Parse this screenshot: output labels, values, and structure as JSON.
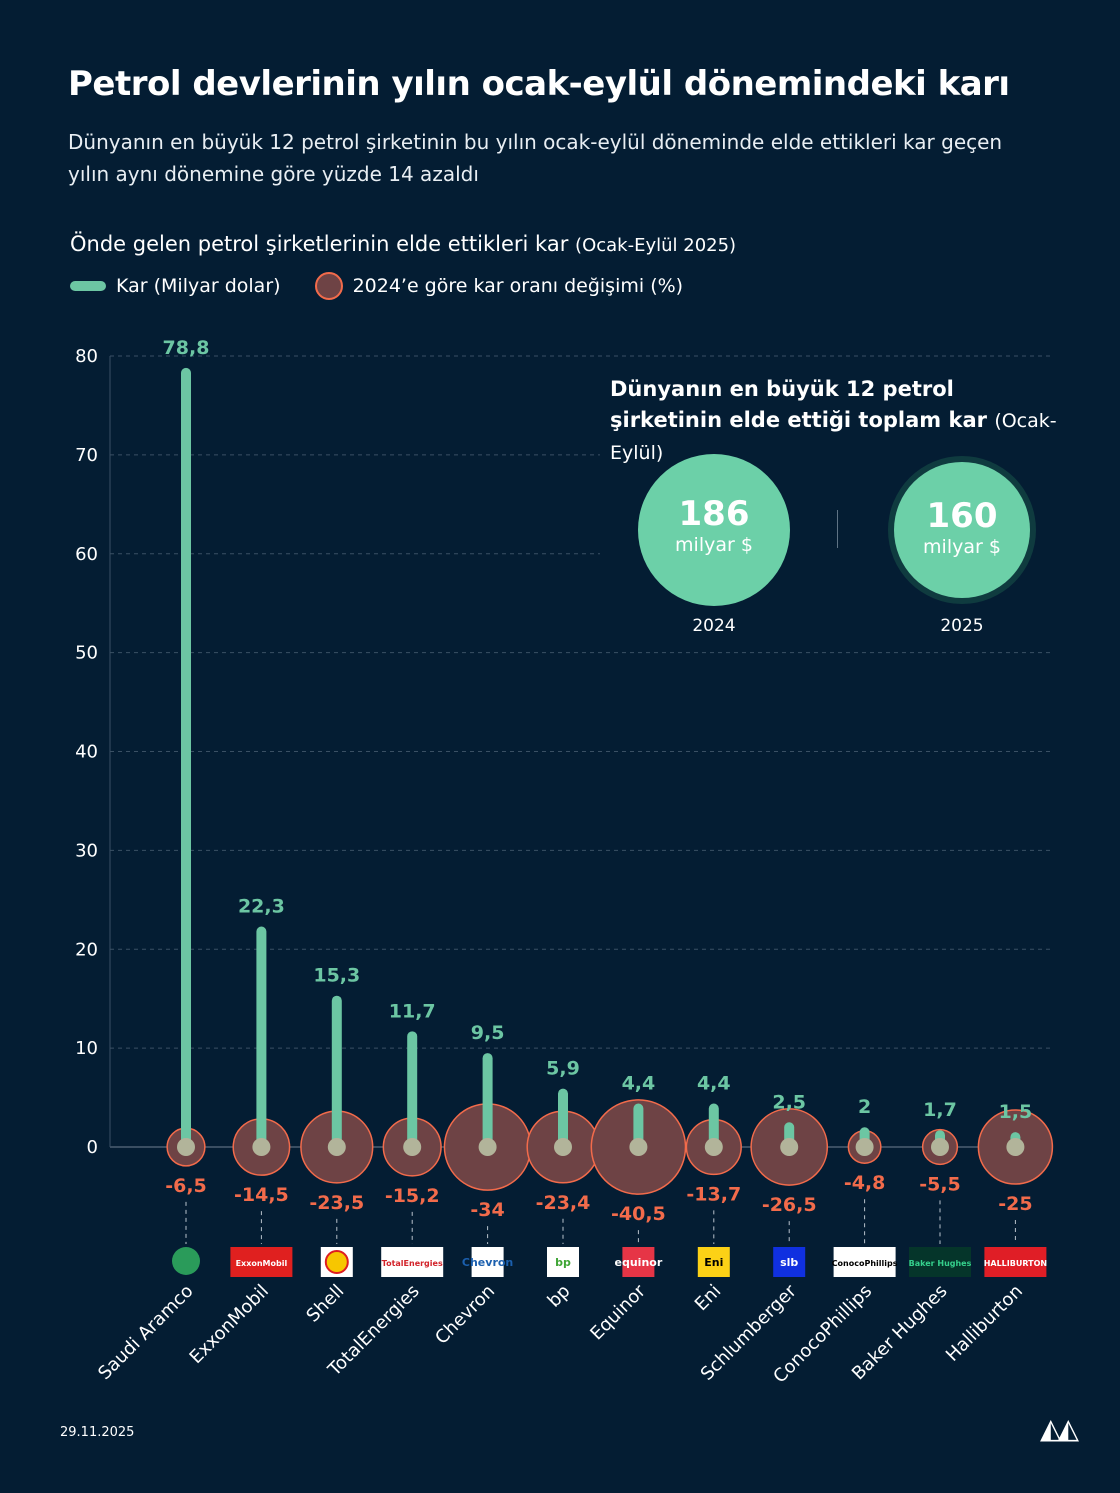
{
  "title": "Petrol devlerinin yılın ocak-eylül dönemindeki karı",
  "subtitle": "Dünyanın en büyük 12 petrol şirketinin bu yılın ocak-eylül döneminde elde ettikleri kar geçen yılın aynı dönemine göre yüzde 14 azaldı",
  "chart_data": {
    "type": "bar",
    "title": "Önde gelen petrol şirketlerinin elde ettikleri kar",
    "title_note": "(Ocak-Eylül 2025)",
    "legend": {
      "bar": "Kar (Milyar dolar)",
      "bubble": "2024’e göre kar oranı değişimi (%)",
      "placement": "top-left"
    },
    "categories": [
      "Saudi Aramco",
      "ExxonMobil",
      "Shell",
      "TotalEnergies",
      "Chevron",
      "bp",
      "Equinor",
      "Eni",
      "Schlumberger",
      "ConocoPhillips",
      "Baker Hughes",
      "Halliburton"
    ],
    "series": [
      {
        "name": "Kar (Milyar dolar)",
        "values": [
          78.8,
          22.3,
          15.3,
          11.7,
          9.5,
          5.9,
          4.4,
          4.4,
          2.5,
          2,
          1.7,
          1.5
        ],
        "labels": [
          "78,8",
          "22,3",
          "15,3",
          "11,7",
          "9,5",
          "5,9",
          "4,4",
          "4,4",
          "2,5",
          "2",
          "1,7",
          "1,5"
        ],
        "color": "#6cc6a3"
      },
      {
        "name": "2024’e göre kar oranı değişimi (%)",
        "values": [
          -6.5,
          -14.5,
          -23.5,
          -15.2,
          -34,
          -23.4,
          -40.5,
          -13.7,
          -26.5,
          -4.8,
          -5.5,
          -25
        ],
        "labels": [
          "-6,5",
          "-14,5",
          "-23,5",
          "-15,2",
          "-34",
          "-23,4",
          "-40,5",
          "-13,7",
          "-26,5",
          "-4,8",
          "-5,5",
          "-25"
        ],
        "color": "#6e4345",
        "stroke": "#f26b4b"
      }
    ],
    "yticks": [
      "0",
      "10",
      "20",
      "30",
      "40",
      "50",
      "60",
      "70",
      "80"
    ],
    "ylim": [
      0,
      80
    ],
    "grid": true
  },
  "logos": [
    {
      "text": "",
      "bg": "#2a9b5a",
      "fg": "#fff",
      "round": true
    },
    {
      "text": "ExxonMobil",
      "bg": "#e0201f",
      "fg": "#fff"
    },
    {
      "text": "",
      "bg": "#ffffff",
      "fg": "#f7c600",
      "shell": true
    },
    {
      "text": "TotalEnergies",
      "bg": "#ffffff",
      "fg": "#d2232a"
    },
    {
      "text": "Chevron",
      "bg": "#ffffff",
      "fg": "#1b5fae"
    },
    {
      "text": "bp",
      "bg": "#ffffff",
      "fg": "#3fa535"
    },
    {
      "text": "equinor",
      "bg": "#e63546",
      "fg": "#fff"
    },
    {
      "text": "Eni",
      "bg": "#fcd116",
      "fg": "#000"
    },
    {
      "text": "slb",
      "bg": "#1030e0",
      "fg": "#fff"
    },
    {
      "text": "ConocoPhillips",
      "bg": "#ffffff",
      "fg": "#000"
    },
    {
      "text": "Baker Hughes",
      "bg": "#05352a",
      "fg": "#35d08c"
    },
    {
      "text": "HALLIBURTON",
      "bg": "#e01e26",
      "fg": "#fff"
    }
  ],
  "inset": {
    "title": "Dünyanın en büyük 12 petrol şirketinin elde ettiği toplam kar",
    "title_note": "(Ocak-Eylül)",
    "items": [
      {
        "value": "186",
        "unit": "milyar $",
        "year": "2024"
      },
      {
        "value": "160",
        "unit": "milyar $",
        "year": "2025"
      }
    ]
  },
  "footer": {
    "date": "29.11.2025",
    "logo": "AA"
  },
  "colors": {
    "background": "#041d33",
    "bar": "#6cc6a3",
    "bubble": "#6e4345",
    "bubble_stroke": "#f26b4b",
    "negative_label": "#f26b4b"
  }
}
